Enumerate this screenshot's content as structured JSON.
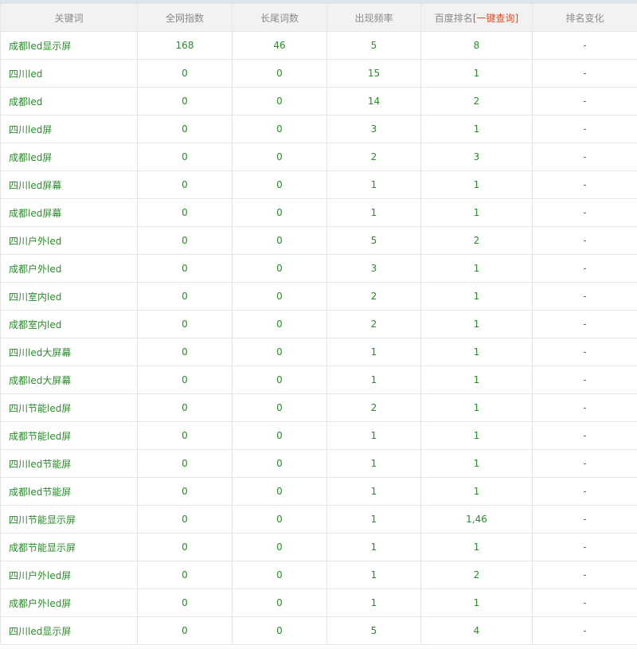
{
  "headers": {
    "keyword": "关键词",
    "total_index": "全网指数",
    "longtail": "长尾词数",
    "frequency": "出现频率",
    "baidu_rank": "百度排名",
    "one_click_query": "[一键查询]",
    "rank_change": "排名变化"
  },
  "colors": {
    "value_text": "#2b8a2b",
    "link": "#e8481c",
    "header_bg": "#f2f2f2"
  },
  "rows": [
    {
      "keyword": "成都led显示屏",
      "total": "168",
      "longtail": "46",
      "freq": "5",
      "rank": "8",
      "change": "-"
    },
    {
      "keyword": "四川led",
      "total": "0",
      "longtail": "0",
      "freq": "15",
      "rank": "1",
      "change": "-"
    },
    {
      "keyword": "成都led",
      "total": "0",
      "longtail": "0",
      "freq": "14",
      "rank": "2",
      "change": "-"
    },
    {
      "keyword": "四川led屏",
      "total": "0",
      "longtail": "0",
      "freq": "3",
      "rank": "1",
      "change": "-"
    },
    {
      "keyword": "成都led屏",
      "total": "0",
      "longtail": "0",
      "freq": "2",
      "rank": "3",
      "change": "-"
    },
    {
      "keyword": "四川led屏幕",
      "total": "0",
      "longtail": "0",
      "freq": "1",
      "rank": "1",
      "change": "-"
    },
    {
      "keyword": "成都led屏幕",
      "total": "0",
      "longtail": "0",
      "freq": "1",
      "rank": "1",
      "change": "-"
    },
    {
      "keyword": "四川户外led",
      "total": "0",
      "longtail": "0",
      "freq": "5",
      "rank": "2",
      "change": "-"
    },
    {
      "keyword": "成都户外led",
      "total": "0",
      "longtail": "0",
      "freq": "3",
      "rank": "1",
      "change": "-"
    },
    {
      "keyword": "四川室内led",
      "total": "0",
      "longtail": "0",
      "freq": "2",
      "rank": "1",
      "change": "-"
    },
    {
      "keyword": "成都室内led",
      "total": "0",
      "longtail": "0",
      "freq": "2",
      "rank": "1",
      "change": "-"
    },
    {
      "keyword": "四川led大屏幕",
      "total": "0",
      "longtail": "0",
      "freq": "1",
      "rank": "1",
      "change": "-"
    },
    {
      "keyword": "成都led大屏幕",
      "total": "0",
      "longtail": "0",
      "freq": "1",
      "rank": "1",
      "change": "-"
    },
    {
      "keyword": "四川节能led屏",
      "total": "0",
      "longtail": "0",
      "freq": "2",
      "rank": "1",
      "change": "-"
    },
    {
      "keyword": "成都节能led屏",
      "total": "0",
      "longtail": "0",
      "freq": "1",
      "rank": "1",
      "change": "-"
    },
    {
      "keyword": "四川led节能屏",
      "total": "0",
      "longtail": "0",
      "freq": "1",
      "rank": "1",
      "change": "-"
    },
    {
      "keyword": "成都led节能屏",
      "total": "0",
      "longtail": "0",
      "freq": "1",
      "rank": "1",
      "change": "-"
    },
    {
      "keyword": "四川节能显示屏",
      "total": "0",
      "longtail": "0",
      "freq": "1",
      "rank": "1,46",
      "change": "-"
    },
    {
      "keyword": "成都节能显示屏",
      "total": "0",
      "longtail": "0",
      "freq": "1",
      "rank": "1",
      "change": "-"
    },
    {
      "keyword": "四川户外led屏",
      "total": "0",
      "longtail": "0",
      "freq": "1",
      "rank": "2",
      "change": "-"
    },
    {
      "keyword": "成都户外led屏",
      "total": "0",
      "longtail": "0",
      "freq": "1",
      "rank": "1",
      "change": "-"
    },
    {
      "keyword": "四川led显示屏",
      "total": "0",
      "longtail": "0",
      "freq": "5",
      "rank": "4",
      "change": "-"
    }
  ]
}
